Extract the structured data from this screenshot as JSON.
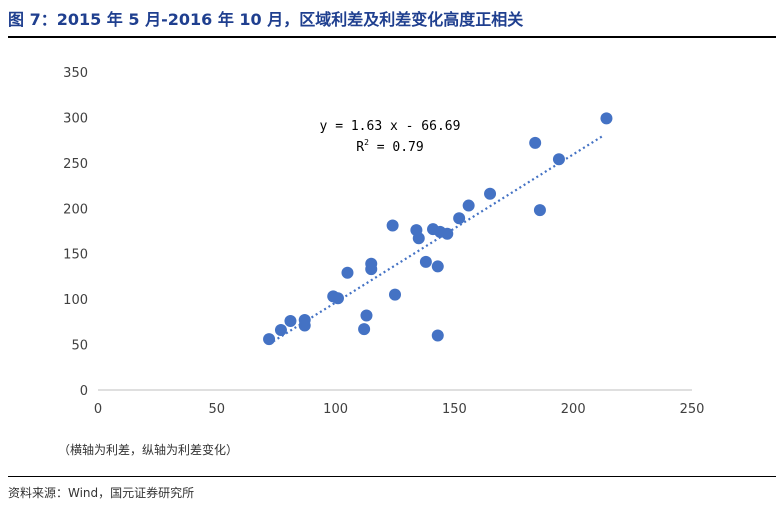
{
  "title": "图 7：2015 年 5 月-2016 年 10 月，区域利差及利差变化高度正相关",
  "note": "（横轴为利差，纵轴为利差变化）",
  "source": "资料来源：Wind，国元证券研究所",
  "colors": {
    "title": "#1f3f8f",
    "point": "#4472c4",
    "trendline": "#4472c4",
    "axis": "#bfbfbf"
  },
  "chart_data": {
    "type": "scatter",
    "xlim": [
      0,
      250
    ],
    "ylim": [
      0,
      350
    ],
    "x_ticks": [
      0,
      50,
      100,
      150,
      200,
      250
    ],
    "y_ticks": [
      0,
      50,
      100,
      150,
      200,
      250,
      300,
      350
    ],
    "grid": false,
    "legend": "none",
    "trendline": {
      "style": "dotted",
      "slope": 1.63,
      "intercept": -66.69,
      "x_range": [
        72,
        213
      ],
      "equation": "y = 1.63 x - 66.69",
      "r2_label": "R",
      "r2_exp": "2",
      "r2_value": " = 0.79"
    },
    "points": [
      {
        "x": 72,
        "y": 56
      },
      {
        "x": 77,
        "y": 66
      },
      {
        "x": 81,
        "y": 76
      },
      {
        "x": 87,
        "y": 71
      },
      {
        "x": 87,
        "y": 77
      },
      {
        "x": 99,
        "y": 103
      },
      {
        "x": 101,
        "y": 101
      },
      {
        "x": 105,
        "y": 129
      },
      {
        "x": 112,
        "y": 67
      },
      {
        "x": 113,
        "y": 82
      },
      {
        "x": 115,
        "y": 133
      },
      {
        "x": 115,
        "y": 139
      },
      {
        "x": 124,
        "y": 181
      },
      {
        "x": 125,
        "y": 105
      },
      {
        "x": 134,
        "y": 176
      },
      {
        "x": 135,
        "y": 167
      },
      {
        "x": 138,
        "y": 141
      },
      {
        "x": 141,
        "y": 177
      },
      {
        "x": 143,
        "y": 136
      },
      {
        "x": 143,
        "y": 60
      },
      {
        "x": 144,
        "y": 174
      },
      {
        "x": 147,
        "y": 172
      },
      {
        "x": 152,
        "y": 189
      },
      {
        "x": 156,
        "y": 203
      },
      {
        "x": 165,
        "y": 216
      },
      {
        "x": 184,
        "y": 272
      },
      {
        "x": 186,
        "y": 198
      },
      {
        "x": 194,
        "y": 254
      },
      {
        "x": 214,
        "y": 299
      }
    ]
  }
}
